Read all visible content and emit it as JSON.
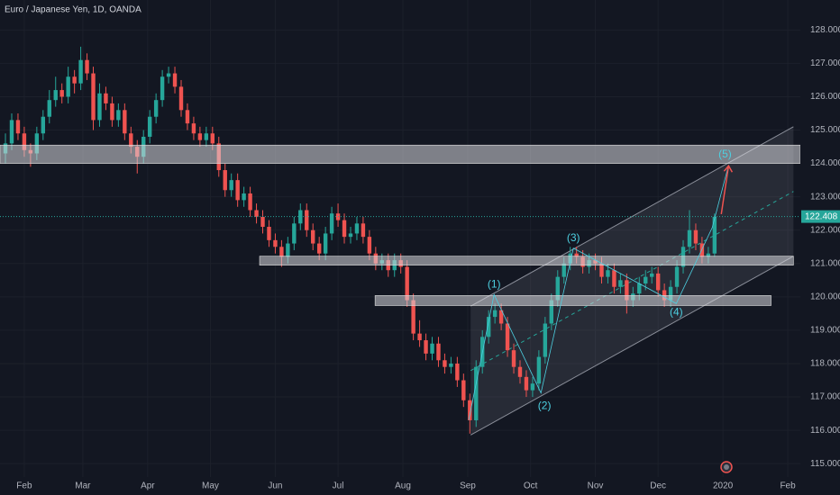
{
  "chart_data": {
    "type": "candlestick",
    "title": "Euro / Japanese Yen, 1D, OANDA",
    "up_color": "#26a69a",
    "down_color": "#ef5350",
    "xlim": [
      19.4,
      402
    ],
    "xticks": [
      {
        "value": 31,
        "label": "Feb"
      },
      {
        "value": 59,
        "label": "Mar"
      },
      {
        "value": 90,
        "label": "Apr"
      },
      {
        "value": 120,
        "label": "May"
      },
      {
        "value": 151,
        "label": "Jun"
      },
      {
        "value": 181,
        "label": "Jul"
      },
      {
        "value": 212,
        "label": "Aug"
      },
      {
        "value": 243,
        "label": "Sep"
      },
      {
        "value": 273,
        "label": "Oct"
      },
      {
        "value": 304,
        "label": "Nov"
      },
      {
        "value": 334,
        "label": "Dec"
      },
      {
        "value": 365,
        "label": "2020"
      },
      {
        "value": 396,
        "label": "Feb"
      }
    ],
    "ylim": [
      114.6,
      128.9
    ],
    "yticks": [
      {
        "value": 128,
        "label": "128.000"
      },
      {
        "value": 127,
        "label": "127.000"
      },
      {
        "value": 126,
        "label": "126.000"
      },
      {
        "value": 125,
        "label": "125.000"
      },
      {
        "value": 124,
        "label": "124.000"
      },
      {
        "value": 123,
        "label": "123.000"
      },
      {
        "value": 122,
        "label": "122.000"
      },
      {
        "value": 121,
        "label": "121.000"
      },
      {
        "value": 120,
        "label": "120.000"
      },
      {
        "value": 119,
        "label": "119.000"
      },
      {
        "value": 118,
        "label": "118.000"
      },
      {
        "value": 117,
        "label": "117.000"
      },
      {
        "value": 116,
        "label": "116.000"
      },
      {
        "value": 115,
        "label": "115.000"
      }
    ],
    "last_price": {
      "value": 122.408,
      "label": "122.408"
    },
    "x": [
      22,
      25,
      28,
      31,
      34,
      37,
      40,
      43,
      46,
      49,
      52,
      55,
      58,
      61,
      64,
      67,
      70,
      73,
      76,
      79,
      82,
      85,
      88,
      91,
      94,
      97,
      100,
      103,
      106,
      109,
      112,
      115,
      118,
      121,
      124,
      127,
      130,
      133,
      136,
      139,
      142,
      145,
      148,
      151,
      154,
      157,
      160,
      163,
      166,
      169,
      172,
      175,
      178,
      181,
      184,
      187,
      190,
      193,
      196,
      199,
      202,
      205,
      208,
      211,
      214,
      217,
      220,
      223,
      226,
      229,
      232,
      235,
      238,
      241,
      244,
      247,
      250,
      253,
      256,
      259,
      262,
      265,
      268,
      271,
      274,
      277,
      280,
      283,
      286,
      289,
      292,
      295,
      298,
      301,
      304,
      307,
      310,
      313,
      316,
      319,
      322,
      325,
      328,
      331,
      334,
      337,
      340,
      343,
      346,
      349,
      352,
      355,
      358,
      361
    ],
    "candles": [
      [
        124.3,
        124.9,
        124.0,
        124.6
      ],
      [
        124.6,
        125.5,
        124.4,
        125.3
      ],
      [
        125.3,
        125.5,
        124.7,
        124.9
      ],
      [
        124.9,
        125.1,
        124.2,
        124.4
      ],
      [
        124.4,
        124.6,
        123.9,
        124.3
      ],
      [
        124.3,
        125.1,
        124.1,
        124.9
      ],
      [
        124.9,
        125.6,
        124.7,
        125.4
      ],
      [
        125.4,
        126.2,
        125.2,
        125.9
      ],
      [
        125.9,
        126.6,
        125.7,
        126.2
      ],
      [
        126.2,
        126.4,
        125.8,
        126.0
      ],
      [
        126.0,
        126.9,
        125.8,
        126.6
      ],
      [
        126.6,
        126.8,
        126.1,
        126.4
      ],
      [
        126.4,
        127.5,
        126.2,
        127.1
      ],
      [
        127.1,
        127.3,
        126.5,
        126.7
      ],
      [
        126.7,
        126.9,
        125.0,
        125.3
      ],
      [
        125.3,
        126.4,
        125.1,
        126.1
      ],
      [
        126.1,
        126.3,
        125.6,
        125.8
      ],
      [
        125.8,
        126.0,
        125.1,
        125.3
      ],
      [
        125.3,
        125.8,
        125.1,
        125.6
      ],
      [
        125.6,
        125.8,
        124.7,
        124.9
      ],
      [
        124.9,
        125.1,
        124.3,
        124.5
      ],
      [
        124.5,
        124.7,
        123.7,
        124.2
      ],
      [
        124.2,
        125.0,
        124.0,
        124.8
      ],
      [
        124.8,
        125.6,
        124.6,
        125.4
      ],
      [
        125.4,
        126.1,
        125.2,
        125.9
      ],
      [
        125.9,
        126.8,
        125.7,
        126.6
      ],
      [
        126.6,
        126.9,
        126.4,
        126.7
      ],
      [
        126.7,
        126.9,
        126.1,
        126.3
      ],
      [
        126.3,
        126.5,
        125.4,
        125.6
      ],
      [
        125.6,
        125.8,
        125.0,
        125.2
      ],
      [
        125.2,
        125.4,
        124.7,
        124.9
      ],
      [
        124.9,
        125.1,
        124.5,
        124.7
      ],
      [
        124.7,
        125.1,
        124.5,
        124.9
      ],
      [
        124.9,
        125.1,
        124.4,
        124.6
      ],
      [
        124.6,
        124.8,
        123.6,
        123.8
      ],
      [
        123.8,
        124.0,
        123.0,
        123.2
      ],
      [
        123.2,
        123.7,
        123.0,
        123.5
      ],
      [
        123.5,
        123.7,
        122.7,
        122.9
      ],
      [
        122.9,
        123.3,
        122.7,
        123.1
      ],
      [
        123.1,
        123.3,
        122.4,
        122.6
      ],
      [
        122.6,
        122.8,
        122.2,
        122.4
      ],
      [
        122.4,
        122.6,
        121.9,
        122.1
      ],
      [
        122.1,
        122.3,
        121.5,
        121.7
      ],
      [
        121.7,
        121.9,
        121.3,
        121.5
      ],
      [
        121.5,
        121.7,
        120.9,
        121.2
      ],
      [
        121.2,
        121.8,
        121.0,
        121.6
      ],
      [
        121.6,
        122.4,
        121.4,
        122.2
      ],
      [
        122.2,
        122.8,
        122.0,
        122.6
      ],
      [
        122.6,
        122.8,
        121.8,
        122.0
      ],
      [
        122.0,
        122.2,
        121.4,
        121.6
      ],
      [
        121.6,
        121.8,
        121.1,
        121.3
      ],
      [
        121.3,
        122.1,
        121.1,
        121.9
      ],
      [
        121.9,
        122.7,
        121.7,
        122.5
      ],
      [
        122.5,
        122.8,
        122.1,
        122.3
      ],
      [
        122.3,
        122.5,
        121.6,
        121.8
      ],
      [
        121.8,
        122.1,
        121.6,
        121.9
      ],
      [
        121.9,
        122.4,
        121.7,
        122.2
      ],
      [
        122.2,
        122.4,
        121.6,
        121.8
      ],
      [
        121.8,
        122.0,
        121.1,
        121.3
      ],
      [
        121.3,
        121.5,
        120.8,
        121.0
      ],
      [
        121.0,
        121.3,
        120.8,
        121.1
      ],
      [
        121.1,
        121.3,
        120.6,
        120.8
      ],
      [
        120.8,
        121.3,
        120.6,
        121.1
      ],
      [
        121.1,
        121.3,
        120.7,
        120.9
      ],
      [
        120.9,
        121.1,
        119.7,
        119.9
      ],
      [
        119.9,
        120.1,
        118.7,
        118.9
      ],
      [
        118.9,
        119.3,
        118.5,
        118.7
      ],
      [
        118.7,
        118.9,
        118.1,
        118.3
      ],
      [
        118.3,
        118.8,
        118.1,
        118.6
      ],
      [
        118.6,
        118.8,
        117.9,
        118.1
      ],
      [
        118.1,
        118.3,
        117.7,
        117.9
      ],
      [
        117.9,
        118.2,
        117.7,
        118.0
      ],
      [
        118.0,
        118.2,
        117.3,
        117.5
      ],
      [
        117.5,
        117.7,
        116.7,
        116.9
      ],
      [
        116.9,
        117.1,
        115.9,
        116.3
      ],
      [
        116.3,
        118.1,
        116.1,
        117.9
      ],
      [
        117.9,
        119.0,
        117.7,
        118.8
      ],
      [
        118.8,
        119.6,
        118.6,
        119.4
      ],
      [
        119.4,
        119.8,
        119.2,
        119.6
      ],
      [
        119.6,
        119.8,
        119.0,
        119.2
      ],
      [
        119.2,
        119.4,
        118.2,
        118.4
      ],
      [
        118.4,
        118.6,
        117.7,
        117.9
      ],
      [
        117.9,
        118.1,
        117.4,
        117.6
      ],
      [
        117.6,
        117.8,
        117.0,
        117.2
      ],
      [
        117.2,
        117.6,
        117.0,
        117.4
      ],
      [
        117.4,
        118.4,
        117.2,
        118.2
      ],
      [
        118.2,
        119.4,
        118.0,
        119.2
      ],
      [
        119.2,
        120.1,
        119.0,
        119.9
      ],
      [
        119.9,
        120.8,
        119.7,
        120.6
      ],
      [
        120.6,
        121.2,
        120.4,
        121.0
      ],
      [
        121.0,
        121.5,
        120.8,
        121.3
      ],
      [
        121.3,
        121.5,
        121.0,
        121.2
      ],
      [
        121.2,
        121.4,
        120.7,
        120.9
      ],
      [
        120.9,
        121.3,
        120.7,
        121.1
      ],
      [
        121.1,
        121.3,
        120.8,
        121.0
      ],
      [
        121.0,
        121.2,
        120.4,
        120.6
      ],
      [
        120.6,
        121.0,
        120.4,
        120.8
      ],
      [
        120.8,
        121.0,
        120.1,
        120.3
      ],
      [
        120.3,
        120.7,
        120.1,
        120.5
      ],
      [
        120.5,
        120.7,
        119.5,
        119.9
      ],
      [
        119.9,
        120.3,
        119.7,
        120.1
      ],
      [
        120.1,
        120.6,
        119.9,
        120.4
      ],
      [
        120.4,
        120.8,
        120.2,
        120.6
      ],
      [
        120.6,
        120.9,
        120.4,
        120.7
      ],
      [
        120.7,
        120.9,
        120.0,
        120.2
      ],
      [
        120.2,
        120.4,
        119.7,
        119.9
      ],
      [
        119.9,
        120.5,
        119.7,
        120.3
      ],
      [
        120.3,
        121.1,
        120.1,
        120.9
      ],
      [
        120.9,
        121.7,
        120.7,
        121.5
      ],
      [
        121.5,
        122.6,
        121.3,
        122.0
      ],
      [
        122.0,
        122.2,
        121.4,
        121.6
      ],
      [
        121.6,
        121.8,
        121.0,
        121.2
      ],
      [
        121.2,
        121.5,
        121.0,
        121.3
      ],
      [
        121.3,
        122.5,
        121.2,
        122.4
      ]
    ],
    "zones": [
      {
        "x": [
          19.4,
          402
        ],
        "y": [
          124.0,
          124.55
        ]
      },
      {
        "x": [
          143.5,
          398.7
        ],
        "y": [
          120.95,
          121.22
        ]
      },
      {
        "x": [
          198.7,
          388
        ],
        "y": [
          119.74,
          120.04
        ]
      }
    ],
    "channel": {
      "lower": [
        [
          244.4,
          115.86
        ],
        [
          398.7,
          121.22
        ]
      ],
      "upper": [
        [
          244.4,
          119.72
        ],
        [
          398.7,
          125.1
        ]
      ],
      "mid": [
        [
          244.4,
          117.79
        ],
        [
          398.7,
          123.16
        ]
      ]
    },
    "wave_path": [
      [
        243.5,
        116.31
      ],
      [
        255.6,
        120.07
      ],
      [
        278,
        117.12
      ],
      [
        293.5,
        121.46
      ],
      [
        342.7,
        119.8
      ],
      [
        359.9,
        122.08
      ],
      [
        367.7,
        123.95
      ]
    ],
    "projection_arrow": [
      [
        364.2,
        122.48
      ],
      [
        367.7,
        123.93
      ]
    ],
    "wave_labels": [
      {
        "text": "(1)",
        "x": 255.6,
        "y": 120.36
      },
      {
        "text": "(2)",
        "x": 279.7,
        "y": 116.72
      },
      {
        "text": "(3)",
        "x": 293.5,
        "y": 121.76
      },
      {
        "text": "(4)",
        "x": 342.7,
        "y": 119.53
      },
      {
        "text": "(5)",
        "x": 366,
        "y": 124.27
      }
    ]
  }
}
